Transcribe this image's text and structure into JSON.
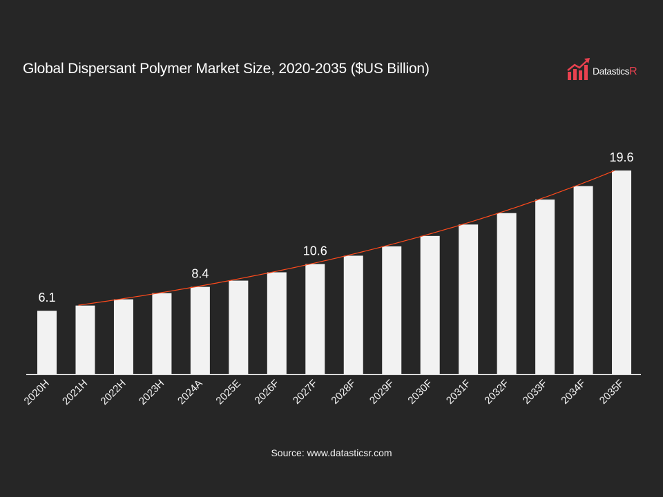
{
  "chart_data": {
    "type": "bar",
    "title": "Global Dispersant Polymer Market Size, 2020-2035 ($US Billion)",
    "categories": [
      "2020H",
      "2021H",
      "2022H",
      "2023H",
      "2024A",
      "2025E",
      "2026F",
      "2027F",
      "2028F",
      "2029F",
      "2030F",
      "2031F",
      "2032F",
      "2033F",
      "2034F",
      "2035F"
    ],
    "values": [
      6.1,
      6.6,
      7.2,
      7.8,
      8.4,
      9.0,
      9.8,
      10.6,
      11.4,
      12.3,
      13.3,
      14.4,
      15.5,
      16.8,
      18.1,
      19.6
    ],
    "data_labels": {
      "2020H": "6.1",
      "2024A": "8.4",
      "2027F": "10.6",
      "2035F": "19.6"
    },
    "trendline": {
      "type": "exponential",
      "from": "2021H",
      "to": "2035F",
      "color": "#ff4a1c"
    },
    "bar_color": "#f2f2f2",
    "background": "#262626",
    "ylim": [
      0,
      19.6
    ],
    "grid": false,
    "legend": "none",
    "xlabel": "",
    "ylabel": ""
  },
  "logo": {
    "text_main": "Datastics",
    "text_accent": "R",
    "accent_color": "#e8414f"
  },
  "source": "Source: www.datasticsr.com"
}
